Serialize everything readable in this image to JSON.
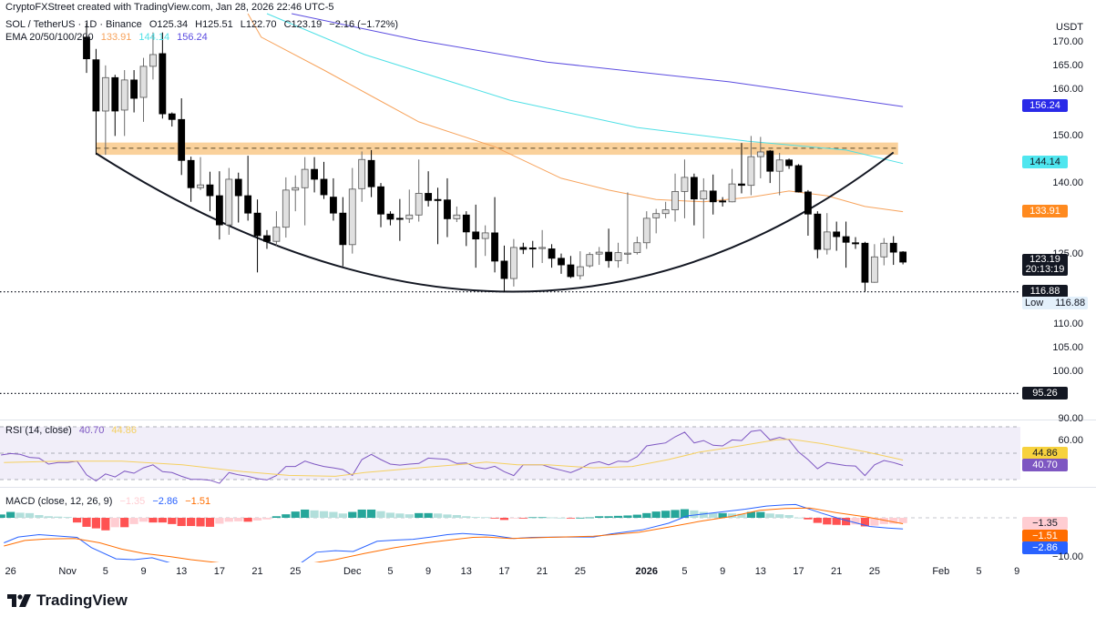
{
  "header": {
    "attribution": "CryptoFXStreet created with TradingView.com, Jan 28, 2026 22:46 UTC-5",
    "symbol": "SOL / TetherUS · 1D · Binance",
    "open": "O125.34",
    "high": "H125.51",
    "low": "L122.70",
    "close": "C123.19",
    "change": "−2.16 (−1.72%)",
    "ema_label": "EMA 20/50/100/200",
    "ema20": "133.91",
    "ema50": "144.14",
    "ema100": "156.24"
  },
  "price_axis": {
    "currency": "USDT",
    "ticks": [
      "170.00",
      "165.00",
      "160.00",
      "150.00",
      "140.00",
      "125.00",
      "110.00",
      "105.00",
      "100.00",
      "90.00"
    ],
    "tick_values": [
      170,
      165,
      160,
      150,
      140,
      125,
      110,
      105,
      100,
      90
    ],
    "tags": {
      "ema100": "156.24",
      "ema50": "144.14",
      "ema20": "133.91",
      "last_price": "123.19",
      "countdown": "20:13:19",
      "low_line": "116.88",
      "low_label": "Low",
      "low_value": "116.88",
      "support_line": "95.26"
    }
  },
  "colors": {
    "up": "#e0e0e0",
    "down": "#000000",
    "ema20": "#f7a35c",
    "ema50": "#4fe0e6",
    "ema100": "#5b4ce0",
    "zone": "#f9c98a",
    "rsi": "#7e57c2",
    "rsi_ma": "#f5d060",
    "macd": "#2962ff",
    "signal": "#ff6d00",
    "hist_up_strong": "#26a69a",
    "hist_up_weak": "#b2dfdb",
    "hist_down_strong": "#ff5252",
    "hist_down_weak": "#ffcdd2"
  },
  "chart_data": {
    "type": "candlestick",
    "first_candle_date": "Nov 3",
    "candles_ohlc": [
      [
        171,
        174,
        163.4,
        166.4
      ],
      [
        166.2,
        168.5,
        146,
        155.3
      ],
      [
        155.3,
        165,
        146,
        162.4
      ],
      [
        162.4,
        163,
        150,
        155.3
      ],
      [
        155.5,
        164,
        150,
        161.9
      ],
      [
        161.9,
        164,
        155,
        158
      ],
      [
        158.2,
        166.6,
        153,
        164.8
      ],
      [
        164.8,
        172,
        162,
        167.3
      ],
      [
        167.5,
        172,
        153.7,
        154.7
      ],
      [
        154.7,
        155,
        152,
        153.5
      ],
      [
        153.5,
        158,
        141.7,
        144.8
      ],
      [
        144.8,
        145.6,
        136,
        139
      ],
      [
        139,
        145.5,
        138.5,
        139.6
      ],
      [
        139.6,
        142.4,
        134,
        137.3
      ],
      [
        137.3,
        142.5,
        128,
        131.1
      ],
      [
        131.1,
        143.2,
        129,
        140.8
      ],
      [
        140.8,
        142.2,
        131.6,
        137.3
      ],
      [
        137.3,
        145.8,
        132,
        133.6
      ],
      [
        133.6,
        136.5,
        121,
        128.8
      ],
      [
        128.8,
        130,
        126,
        127.6
      ],
      [
        127.6,
        134,
        126.5,
        130.6
      ],
      [
        130.6,
        141.2,
        128.4,
        138.5
      ],
      [
        138.5,
        141.6,
        134,
        139
      ],
      [
        139,
        145.5,
        131,
        142.9
      ],
      [
        142.9,
        145.5,
        138,
        140.8
      ],
      [
        140.8,
        144.5,
        136.6,
        137.5
      ],
      [
        137,
        141,
        132,
        133.6
      ],
      [
        133.6,
        137,
        122.3,
        126.9
      ],
      [
        126.9,
        143.2,
        125,
        138.7
      ],
      [
        138.8,
        146.7,
        136,
        145
      ],
      [
        144.8,
        147,
        137,
        139.2
      ],
      [
        139.2,
        140,
        130.6,
        133.4
      ],
      [
        133.4,
        134,
        131,
        132.3
      ],
      [
        132.5,
        136.6,
        127.7,
        132.4
      ],
      [
        132.4,
        138.6,
        131.5,
        133.2
      ],
      [
        133.2,
        145,
        131.8,
        137.8
      ],
      [
        137.8,
        142.5,
        135,
        136.3
      ],
      [
        136.5,
        139,
        127,
        136.4
      ],
      [
        136.4,
        141,
        128.5,
        132.4
      ],
      [
        132.4,
        135,
        131.7,
        133.2
      ],
      [
        133.2,
        134,
        126.6,
        129.6
      ],
      [
        129.6,
        135.4,
        122,
        128.1
      ],
      [
        128.2,
        131,
        124.5,
        129.4
      ],
      [
        129.4,
        137,
        121,
        123.4
      ],
      [
        123.4,
        126.7,
        116.9,
        119.7
      ],
      [
        119.7,
        128.1,
        118,
        126.3
      ],
      [
        126.3,
        127.3,
        124.9,
        125.9
      ],
      [
        126.2,
        127.7,
        122,
        126
      ],
      [
        126.3,
        130,
        123,
        126.3
      ],
      [
        126,
        127,
        122,
        124
      ],
      [
        124,
        125,
        120.7,
        122.6
      ],
      [
        122.6,
        124.5,
        119.8,
        120.1
      ],
      [
        120.3,
        125.5,
        119.5,
        122.2
      ],
      [
        122.4,
        125.3,
        122,
        124.8
      ],
      [
        124.9,
        126.4,
        122.6,
        125.3
      ],
      [
        125.3,
        130.3,
        122,
        123.5
      ],
      [
        123.5,
        127.3,
        122,
        125.2
      ],
      [
        125,
        138,
        122.8,
        125.1
      ],
      [
        125.2,
        128.6,
        124.8,
        127.3
      ],
      [
        127.3,
        134,
        126,
        132.5
      ],
      [
        132.6,
        134.5,
        129.3,
        133.5
      ],
      [
        133.5,
        136,
        132.5,
        134.3
      ],
      [
        134.3,
        142,
        131.8,
        138.2
      ],
      [
        138.2,
        145,
        132.5,
        141.2
      ],
      [
        141.2,
        142,
        131,
        136.6
      ],
      [
        136.6,
        141,
        128.2,
        138.3
      ],
      [
        138.3,
        141.8,
        133.3,
        136
      ],
      [
        136.2,
        137,
        135,
        136.1
      ],
      [
        136,
        143,
        135.9,
        139.8
      ],
      [
        139.8,
        148.5,
        137.8,
        139.5
      ],
      [
        139.5,
        150,
        137.4,
        145.6
      ],
      [
        145.6,
        149.8,
        141,
        146.6
      ],
      [
        146.8,
        147,
        140,
        142.5
      ],
      [
        142.5,
        146.4,
        137.4,
        144.9
      ],
      [
        144.9,
        145.2,
        143,
        143.7
      ],
      [
        143.7,
        144,
        138,
        138.1
      ],
      [
        138.1,
        138.5,
        128.8,
        133.4
      ],
      [
        133.4,
        134,
        124,
        125.9
      ],
      [
        125.9,
        133.6,
        124.8,
        129.6
      ],
      [
        129.6,
        131.8,
        125.6,
        128.6
      ],
      [
        128.6,
        131.8,
        122,
        127.4
      ],
      [
        127.3,
        128.5,
        126,
        127.2
      ],
      [
        127.2,
        127.5,
        116.9,
        118.9
      ],
      [
        118.9,
        127,
        118.8,
        124.3
      ],
      [
        124.3,
        128.3,
        122.5,
        127.2
      ],
      [
        127.2,
        128.7,
        122.6,
        125.3
      ],
      [
        125.34,
        125.51,
        122.7,
        123.19
      ]
    ],
    "ema20": [
      [
        17,
        176
      ],
      [
        18.4,
        171
      ],
      [
        25,
        164
      ],
      [
        30,
        158.5
      ],
      [
        35,
        153
      ],
      [
        43,
        147.7
      ],
      [
        50,
        141
      ],
      [
        55,
        138.5
      ],
      [
        60,
        136.5
      ],
      [
        65,
        136
      ],
      [
        70,
        137
      ],
      [
        74,
        138.3
      ],
      [
        78,
        137.3
      ],
      [
        82,
        135
      ],
      [
        86,
        133.91
      ]
    ],
    "ema50": [
      [
        19,
        176
      ],
      [
        29.3,
        167.3
      ],
      [
        44.6,
        157.6
      ],
      [
        58,
        151.8
      ],
      [
        69.6,
        148.9
      ],
      [
        80,
        147
      ],
      [
        86,
        144.14
      ]
    ],
    "ema100": [
      [
        21.6,
        176
      ],
      [
        35,
        170.3
      ],
      [
        48.5,
        165.7
      ],
      [
        67.7,
        161.5
      ],
      [
        86,
        156.24
      ]
    ],
    "resistance_zone": {
      "low": 146.0,
      "high": 148.6,
      "mid": 147.4,
      "from_index": 1,
      "to_index": 85
    },
    "rounding_curve": {
      "start": [
        1,
        146.3
      ],
      "bottom": [
        45,
        116.9
      ],
      "end": [
        85,
        146.5
      ]
    },
    "horizontal_levels": [
      116.88,
      95.26
    ],
    "y_range": [
      88,
      176
    ],
    "date_ticks": [
      {
        "label": "26",
        "index": -8
      },
      {
        "label": "Nov",
        "index": -2
      },
      {
        "label": "5",
        "index": 2
      },
      {
        "label": "9",
        "index": 6
      },
      {
        "label": "13",
        "index": 10
      },
      {
        "label": "17",
        "index": 14
      },
      {
        "label": "21",
        "index": 18
      },
      {
        "label": "25",
        "index": 22
      },
      {
        "label": "Dec",
        "index": 28
      },
      {
        "label": "5",
        "index": 32
      },
      {
        "label": "9",
        "index": 36
      },
      {
        "label": "13",
        "index": 40
      },
      {
        "label": "17",
        "index": 44
      },
      {
        "label": "21",
        "index": 48
      },
      {
        "label": "25",
        "index": 52
      },
      {
        "label": "2026",
        "index": 59
      },
      {
        "label": "5",
        "index": 63
      },
      {
        "label": "9",
        "index": 67
      },
      {
        "label": "13",
        "index": 71
      },
      {
        "label": "17",
        "index": 75
      },
      {
        "label": "21",
        "index": 79
      },
      {
        "label": "25",
        "index": 83
      },
      {
        "label": "Feb",
        "index": 90
      },
      {
        "label": "5",
        "index": 94
      },
      {
        "label": "9",
        "index": 98
      }
    ],
    "rsi": {
      "title": "RSI (14, close)",
      "value": "40.70",
      "ma_value": "44.86",
      "axis_label": "60.00",
      "levels": [
        70,
        50,
        30
      ],
      "range": [
        28,
        72
      ],
      "start_index": -9,
      "end_index": 86,
      "values": [
        48.6,
        49.7,
        49.1,
        46.8,
        46.3,
        41.7,
        42.9,
        42.9,
        44,
        33.6,
        29,
        34.3,
        32,
        36.4,
        34.8,
        38.9,
        41.2,
        36,
        35.3,
        32.5,
        30.2,
        30.2,
        29.5,
        27.2,
        35.3,
        33.6,
        32.5,
        30.7,
        29.7,
        33,
        39.9,
        39.9,
        44,
        41.7,
        39.9,
        38.9,
        37.6,
        33.2,
        45.2,
        49.1,
        45.2,
        41.7,
        41,
        41.7,
        42.2,
        46.3,
        45.8,
        45.4,
        42.2,
        42.6,
        39.4,
        38.2,
        40.1,
        36,
        33,
        41.2,
        41.2,
        41.2,
        38.9,
        37.1,
        35.3,
        38.2,
        42.2,
        43.5,
        41.2,
        44,
        43.5,
        47.4,
        55.5,
        56.7,
        57.8,
        62.4,
        65.9,
        57.8,
        59.6,
        56,
        55.5,
        60.1,
        59.6,
        66.5,
        67.5,
        60.1,
        61.9,
        60.1,
        50.9,
        45.2,
        38.2,
        42.9,
        41.7,
        40.6,
        40.3,
        33,
        41.2,
        44.5,
        42.9,
        40.7
      ],
      "ma": [
        [
          -8.7,
          42.9
        ],
        [
          -2.7,
          44
        ],
        [
          3.7,
          44
        ],
        [
          10.1,
          41.2
        ],
        [
          16.5,
          36
        ],
        [
          21.3,
          33.2
        ],
        [
          26.2,
          32.5
        ],
        [
          29.3,
          35.3
        ],
        [
          35.8,
          39.4
        ],
        [
          40.7,
          42.2
        ],
        [
          42.1,
          43.3
        ],
        [
          45.4,
          41.2
        ],
        [
          48.6,
          41.2
        ],
        [
          53.4,
          38.9
        ],
        [
          57.5,
          39.9
        ],
        [
          61.3,
          45.2
        ],
        [
          64.6,
          50.9
        ],
        [
          67.8,
          54.3
        ],
        [
          72.6,
          60.1
        ],
        [
          74.2,
          60.6
        ],
        [
          77.4,
          57.3
        ],
        [
          82.2,
          50.9
        ],
        [
          86,
          44.86
        ]
      ]
    },
    "macd": {
      "title": "MACD (close, 12, 26, 9)",
      "histogram_value": "−1.35",
      "macd_value": "−2.86",
      "signal_value": "−1.51",
      "axis_label": "−10.00",
      "range": [
        -11.3,
        3.8
      ],
      "start_index": -9,
      "end_index": 86,
      "histogram": [
        0.85,
        1.5,
        1.3,
        1.2,
        0.7,
        0.4,
        0.3,
        0.2,
        -1.2,
        -2.3,
        -2.7,
        -3.2,
        -2.4,
        -2.4,
        -1.6,
        -1,
        -1.2,
        -1.2,
        -1.6,
        -2.1,
        -2.1,
        -2.2,
        -2.3,
        -1.5,
        -1,
        -0.9,
        -1,
        -0.7,
        -0.4,
        0.4,
        0.9,
        1.6,
        2.1,
        1.9,
        1.7,
        1.5,
        1.1,
        1.5,
        2.1,
        2.1,
        1.7,
        1.3,
        1.1,
        0.9,
        1.2,
        1.2,
        1.1,
        0.85,
        0.7,
        0.4,
        0.2,
        0.15,
        -0.15,
        -0.55,
        -0.1,
        -0.1,
        0.15,
        0.15,
        0.1,
        0.02,
        -0.1,
        0.02,
        0.1,
        0.4,
        0.4,
        0.5,
        0.6,
        0.8,
        1.2,
        1.6,
        1.8,
        2,
        2.2,
        1.9,
        1.5,
        1.2,
        1.2,
        1.1,
        1,
        1.5,
        1.5,
        1.1,
        0.9,
        0.7,
        0.05,
        -0.4,
        -1.3,
        -1.7,
        -1.8,
        -1.9,
        -1.7,
        -2.2,
        -2,
        -1.6,
        -1.5,
        -1.35
      ],
      "macd_line": [
        [
          -8.7,
          -6.4
        ],
        [
          -7.2,
          -4.9
        ],
        [
          -5,
          -4.3
        ],
        [
          -2.7,
          -4.7
        ],
        [
          -1,
          -5
        ],
        [
          0.5,
          -7.6
        ],
        [
          3.1,
          -10.5
        ],
        [
          5,
          -10.7
        ],
        [
          6.9,
          -10.2
        ],
        [
          8.8,
          -11.5
        ],
        [
          13,
          -13
        ],
        [
          17.8,
          -13.5
        ],
        [
          22.6,
          -11.5
        ],
        [
          24.2,
          -8.8
        ],
        [
          26.2,
          -8.4
        ],
        [
          28.1,
          -8.6
        ],
        [
          30.6,
          -6
        ],
        [
          32.5,
          -5.7
        ],
        [
          34.4,
          -5.5
        ],
        [
          36.3,
          -4.9
        ],
        [
          38,
          -4.3
        ],
        [
          39.6,
          -4
        ],
        [
          42.8,
          -4.5
        ],
        [
          45,
          -5.3
        ],
        [
          46.9,
          -5
        ],
        [
          50.2,
          -4.9
        ],
        [
          53.4,
          -4.9
        ],
        [
          55.3,
          -4.1
        ],
        [
          58.5,
          -3.1
        ],
        [
          61.3,
          -1.4
        ],
        [
          63.3,
          0.5
        ],
        [
          66.2,
          1.3
        ],
        [
          69.4,
          2.2
        ],
        [
          71.6,
          3
        ],
        [
          73.6,
          3.3
        ],
        [
          74.7,
          3.4
        ],
        [
          77.4,
          1.2
        ],
        [
          79.3,
          -0.2
        ],
        [
          82.5,
          -2.2
        ],
        [
          84.4,
          -2.6
        ],
        [
          86,
          -2.86
        ]
      ],
      "signal_line": [
        [
          -8.7,
          -7.2
        ],
        [
          -6.5,
          -5.8
        ],
        [
          -4.2,
          -5.4
        ],
        [
          -1.2,
          -5.3
        ],
        [
          1.4,
          -6.4
        ],
        [
          3.7,
          -8
        ],
        [
          6,
          -9.1
        ],
        [
          8.8,
          -9.9
        ],
        [
          11,
          -10.7
        ],
        [
          15.8,
          -12
        ],
        [
          22.6,
          -12
        ],
        [
          26.2,
          -10.7
        ],
        [
          29.3,
          -9.1
        ],
        [
          32.5,
          -7.6
        ],
        [
          35.8,
          -6.4
        ],
        [
          38.9,
          -5.5
        ],
        [
          40.7,
          -5
        ],
        [
          42.1,
          -4.9
        ],
        [
          44.7,
          -5.3
        ],
        [
          48.6,
          -5
        ],
        [
          53.4,
          -4.7
        ],
        [
          58.2,
          -3.7
        ],
        [
          61.3,
          -2.4
        ],
        [
          64.6,
          -0.9
        ],
        [
          67.8,
          0.3
        ],
        [
          70.9,
          1.9
        ],
        [
          73.6,
          2.4
        ],
        [
          76.2,
          2.5
        ],
        [
          79,
          1.3
        ],
        [
          82.2,
          0.2
        ],
        [
          86,
          -1.51
        ]
      ]
    }
  },
  "footer": {
    "brand": "TradingView"
  }
}
